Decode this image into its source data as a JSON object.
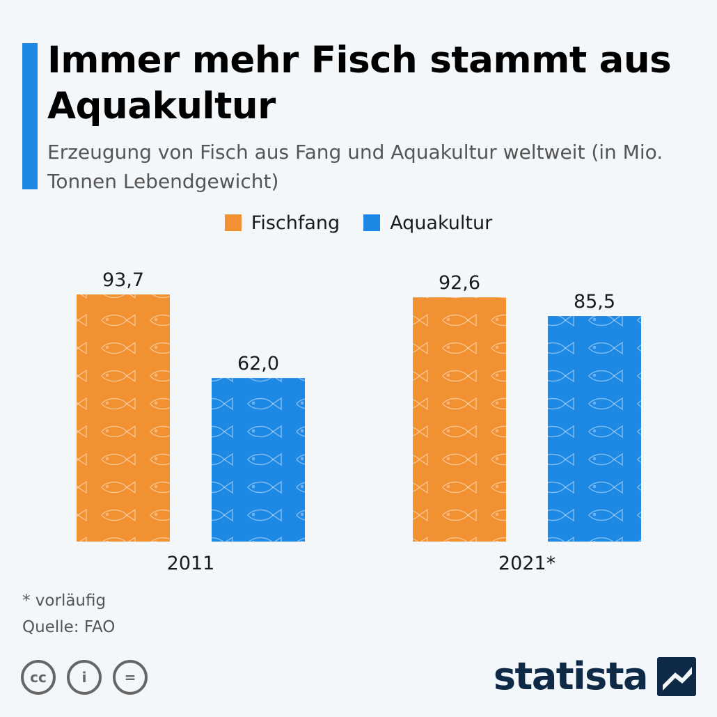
{
  "header": {
    "title": "Immer mehr Fisch stammt aus Aquakultur",
    "subtitle": "Erzeugung von Fisch aus Fang und Aquakultur weltweit (in Mio. Tonnen Lebendgewicht)"
  },
  "colors": {
    "accent": "#1e88e5",
    "fischfang": "#f29132",
    "aquakultur": "#1e88e5",
    "brand": "#0e2a47"
  },
  "chart_data": {
    "type": "bar",
    "title": "Immer mehr Fisch stammt aus Aquakultur",
    "subtitle": "Erzeugung von Fisch aus Fang und Aquakultur weltweit (in Mio. Tonnen Lebendgewicht)",
    "categories": [
      "2011",
      "2021*"
    ],
    "series": [
      {
        "name": "Fischfang",
        "values": [
          93.7,
          92.6
        ],
        "labels": [
          "93,7",
          "92,6"
        ],
        "color": "#f29132"
      },
      {
        "name": "Aquakultur",
        "values": [
          62.0,
          85.5
        ],
        "labels": [
          "62,0",
          "85,5"
        ],
        "color": "#1e88e5"
      }
    ],
    "legend_position": "top-center",
    "grid": false,
    "ylim": [
      0,
      93.7
    ]
  },
  "footer": {
    "note": "* vorläufig",
    "source": "Quelle: FAO",
    "brand": "statista",
    "license_icons": [
      "cc-icon",
      "person-icon",
      "equals-icon"
    ],
    "license_glyphs": [
      "cc",
      "i",
      "="
    ]
  }
}
